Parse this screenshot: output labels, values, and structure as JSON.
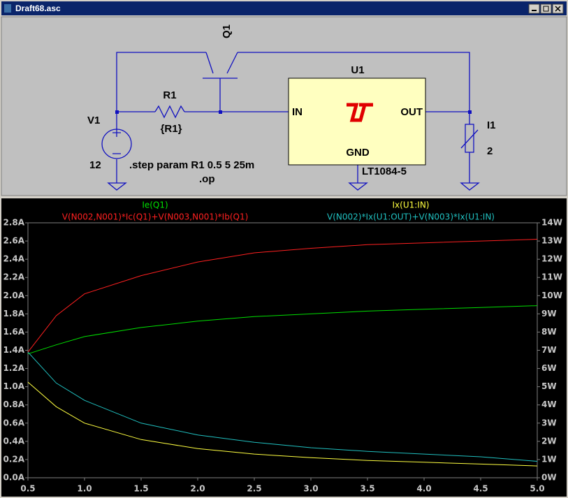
{
  "window": {
    "title": "Draft68.asc"
  },
  "schematic": {
    "q1": "Q1",
    "r1": "R1",
    "r1_value": "{R1}",
    "v1": "V1",
    "v1_value": "12",
    "u1": "U1",
    "in": "IN",
    "out": "OUT",
    "gnd": "GND",
    "u1_part": "LT1084-5",
    "i1": "I1",
    "i1_value": "2",
    "step": ".step param R1 0.5 5 25m",
    "op": ".op"
  },
  "chart_data": {
    "type": "line",
    "x": [
      0.5,
      0.75,
      1,
      1.5,
      2,
      2.5,
      3,
      3.5,
      4,
      4.5,
      5
    ],
    "series": [
      {
        "name": "Ie(Q1)",
        "color": "#00e000",
        "values": [
          1.36,
          1.46,
          1.55,
          1.65,
          1.72,
          1.77,
          1.8,
          1.83,
          1.85,
          1.87,
          1.89
        ]
      },
      {
        "name": "V(N002,N001)*Ic(Q1)+V(N003,N001)*Ib(Q1)",
        "color": "#ff2020",
        "axis": "y2",
        "values": [
          6.9,
          8.9,
          10.1,
          11.1,
          11.85,
          12.35,
          12.6,
          12.8,
          12.9,
          13.0,
          13.1
        ]
      },
      {
        "name": "Ix(U1:IN)",
        "color": "#ffff40",
        "values": [
          1.05,
          0.78,
          0.6,
          0.42,
          0.32,
          0.26,
          0.22,
          0.19,
          0.17,
          0.15,
          0.13
        ]
      },
      {
        "name": "V(N002)*Ix(U1:OUT)+V(N003)*Ix(U1:IN)",
        "color": "#20c0c0",
        "axis": "y2",
        "values": [
          6.9,
          5.2,
          4.25,
          3.0,
          2.35,
          1.95,
          1.65,
          1.45,
          1.3,
          1.15,
          0.9
        ]
      }
    ],
    "xlim": [
      0.5,
      5
    ],
    "xticks": [
      0.5,
      {
        "value": 1,
        "label": "1.0"
      },
      1.5,
      {
        "value": 2,
        "label": "2.0"
      },
      2.5,
      {
        "value": 3,
        "label": "3.0"
      },
      3.5,
      {
        "value": 4,
        "label": "4.0"
      },
      4.5,
      {
        "value": 5,
        "label": "5.0"
      }
    ],
    "ylim": [
      0,
      2.8
    ],
    "yticks": [
      {
        "value": 0,
        "label": "0.0A"
      },
      {
        "value": 0.2,
        "label": "0.2A"
      },
      {
        "value": 0.4,
        "label": "0.4A"
      },
      {
        "value": 0.6,
        "label": "0.6A"
      },
      {
        "value": 0.8,
        "label": "0.8A"
      },
      {
        "value": 1.0,
        "label": "1.0A"
      },
      {
        "value": 1.2,
        "label": "1.2A"
      },
      {
        "value": 1.4,
        "label": "1.4A"
      },
      {
        "value": 1.6,
        "label": "1.6A"
      },
      {
        "value": 1.8,
        "label": "1.8A"
      },
      {
        "value": 2.0,
        "label": "2.0A"
      },
      {
        "value": 2.2,
        "label": "2.2A"
      },
      {
        "value": 2.4,
        "label": "2.4A"
      },
      {
        "value": 2.6,
        "label": "2.6A"
      },
      {
        "value": 2.8,
        "label": "2.8A"
      }
    ],
    "y2lim": [
      0,
      14
    ],
    "y2ticks": [
      {
        "value": 0,
        "label": "0W"
      },
      {
        "value": 1,
        "label": "1W"
      },
      {
        "value": 2,
        "label": "2W"
      },
      {
        "value": 3,
        "label": "3W"
      },
      {
        "value": 4,
        "label": "4W"
      },
      {
        "value": 5,
        "label": "5W"
      },
      {
        "value": 6,
        "label": "6W"
      },
      {
        "value": 7,
        "label": "7W"
      },
      {
        "value": 8,
        "label": "8W"
      },
      {
        "value": 9,
        "label": "9W"
      },
      {
        "value": 10,
        "label": "10W"
      },
      {
        "value": 11,
        "label": "11W"
      },
      {
        "value": 12,
        "label": "12W"
      },
      {
        "value": 13,
        "label": "13W"
      },
      {
        "value": 14,
        "label": "14W"
      }
    ]
  }
}
